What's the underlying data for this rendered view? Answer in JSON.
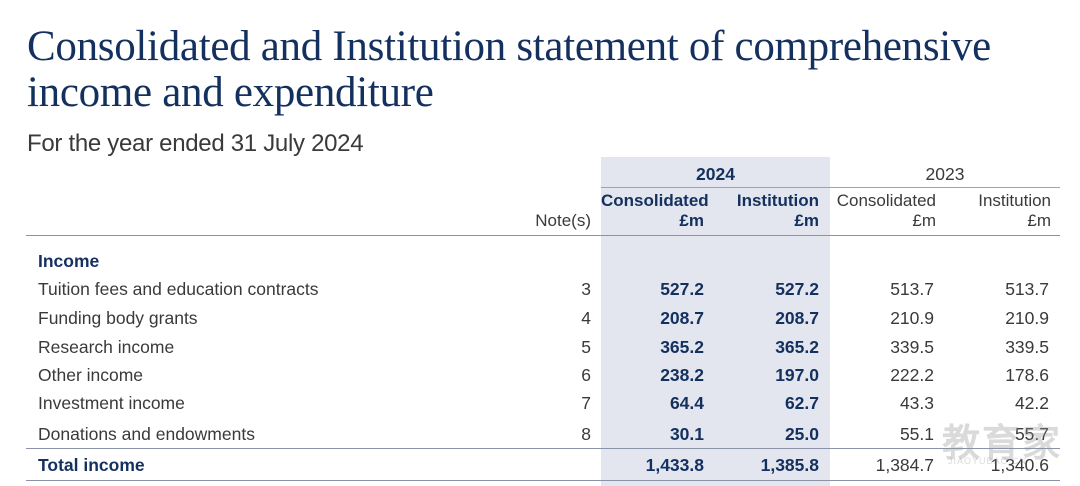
{
  "title": "Consolidated and Institution statement of comprehensive income and expenditure",
  "subtitle": "For the year ended 31 July 2024",
  "header": {
    "year_current": "2024",
    "year_prior": "2023",
    "notes_label": "Note(s)",
    "col1": "Consolidated",
    "col2": "Institution",
    "col3": "Consolidated",
    "col4": "Institution",
    "unit": "£m"
  },
  "section_label": "Income",
  "rows": [
    {
      "label": "Tuition fees and education contracts",
      "note": "3",
      "c24": "527.2",
      "i24": "527.2",
      "c23": "513.7",
      "i23": "513.7"
    },
    {
      "label": "Funding body grants",
      "note": "4",
      "c24": "208.7",
      "i24": "208.7",
      "c23": "210.9",
      "i23": "210.9"
    },
    {
      "label": "Research income",
      "note": "5",
      "c24": "365.2",
      "i24": "365.2",
      "c23": "339.5",
      "i23": "339.5"
    },
    {
      "label": "Other income",
      "note": "6",
      "c24": "238.2",
      "i24": "197.0",
      "c23": "222.2",
      "i23": "178.6"
    },
    {
      "label": "Investment income",
      "note": "7",
      "c24": "64.4",
      "i24": "62.7",
      "c23": "43.3",
      "i23": "42.2"
    },
    {
      "label": "Donations and endowments",
      "note": "8",
      "c24": "30.1",
      "i24": "25.0",
      "c23": "55.1",
      "i23": "55.7"
    }
  ],
  "total": {
    "label": "Total income",
    "c24": "1,433.8",
    "i24": "1,385.8",
    "c23": "1,384.7",
    "i23": "1,340.6"
  },
  "watermark": {
    "big": "教育家",
    "small": "JIAOYUBAO.CN"
  },
  "colors": {
    "heading": "#14305f",
    "shade": "#e3e6ee",
    "text": "#3a3a3a"
  }
}
